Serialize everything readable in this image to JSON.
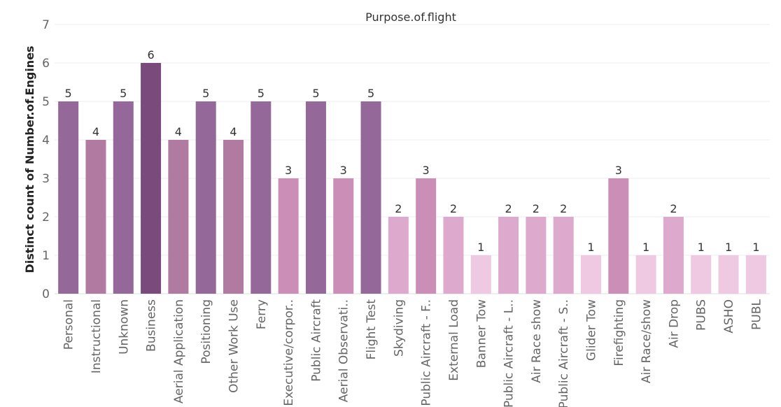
{
  "chart_data": {
    "type": "bar",
    "title": "Purpose.of.flight",
    "xlabel": "",
    "ylabel": "Distinct count of Number.of.Engines",
    "ylim": [
      0,
      7
    ],
    "yticks": [
      0,
      1,
      2,
      3,
      4,
      5,
      6,
      7
    ],
    "grid": true,
    "categories": [
      "Personal",
      "Instructional",
      "Unknown",
      "Business",
      "Aerial Application",
      "Positioning",
      "Other Work Use",
      "Ferry",
      "Executive/corpor..",
      "Public Aircraft",
      "Aerial Observati..",
      "Flight Test",
      "Skydiving",
      "Public Aircraft - F..",
      "External Load",
      "Banner Tow",
      "Public Aircraft - L..",
      "Air Race show",
      "Public Aircraft - S..",
      "Glider Tow",
      "Firefighting",
      "Air Race/show",
      "Air Drop",
      "PUBS",
      "ASHO",
      "PUBL"
    ],
    "values": [
      5,
      4,
      5,
      6,
      4,
      5,
      4,
      5,
      3,
      5,
      3,
      5,
      2,
      3,
      2,
      1,
      2,
      2,
      2,
      1,
      3,
      1,
      2,
      1,
      1,
      1
    ],
    "color_scale": {
      "1": "#efc8e2",
      "2": "#ddaacd",
      "3": "#cb8fb7",
      "4": "#b07aa1",
      "5": "#946899",
      "6": "#7b4a7d"
    }
  }
}
